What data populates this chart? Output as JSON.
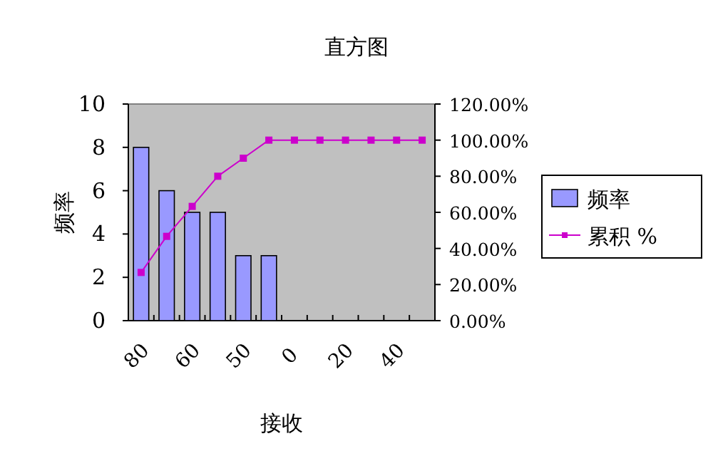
{
  "chart_data": {
    "type": "bar",
    "title": "直方图",
    "xlabel": "接收",
    "ylabel": "频率",
    "categories": [
      "80",
      null,
      "60",
      null,
      "50",
      null,
      "0",
      null,
      "20",
      null,
      "40",
      null
    ],
    "series": [
      {
        "name": "频率",
        "color": "#9999ff",
        "values": [
          8,
          6,
          5,
          5,
          3,
          3,
          null,
          null,
          null,
          null,
          null,
          null
        ]
      },
      {
        "name": "累积 %",
        "type": "line",
        "axis": "y2",
        "color": "#cc00cc",
        "values": [
          26.7,
          46.7,
          63.3,
          80,
          90,
          100,
          100,
          100,
          100,
          100,
          100,
          100
        ]
      }
    ],
    "ylim": [
      0,
      10
    ],
    "yticks": [
      0,
      2,
      4,
      6,
      8,
      10
    ],
    "y2lim": [
      0,
      120
    ],
    "y2ticks": [
      {
        "value": 0,
        "label": "0.00%"
      },
      {
        "value": 20,
        "label": "20.00%"
      },
      {
        "value": 40,
        "label": "40.00%"
      },
      {
        "value": 60,
        "label": "60.00%"
      },
      {
        "value": 80,
        "label": "80.00%"
      },
      {
        "value": 100,
        "label": "100.00%"
      },
      {
        "value": 120,
        "label": "120.00%"
      }
    ],
    "legend": "right",
    "marker": "square",
    "grid": false
  }
}
